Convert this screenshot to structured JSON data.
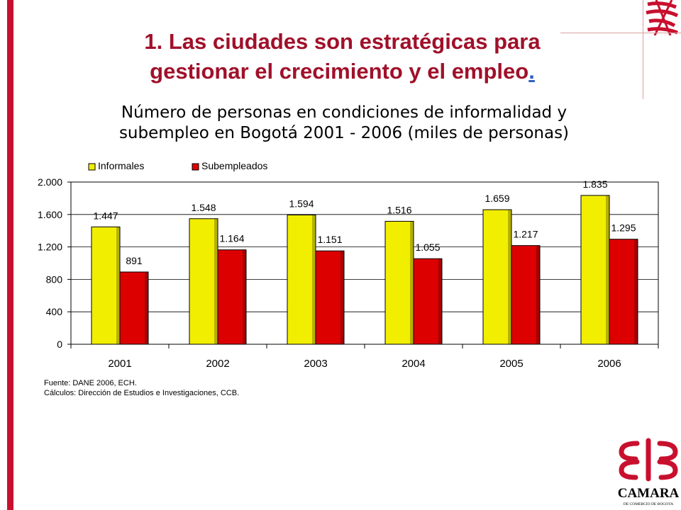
{
  "slide": {
    "title_line1": "1. Las ciudades son estratégicas para",
    "title_line2": "gestionar el crecimiento y el empleo",
    "title_dot": "."
  },
  "chart_data": {
    "type": "bar",
    "title": [
      "Número de personas en condiciones de informalidad y",
      "subempleo en Bogotá 2001 - 2006 (miles de personas)"
    ],
    "categories": [
      "2001",
      "2002",
      "2003",
      "2004",
      "2005",
      "2006"
    ],
    "series": [
      {
        "name": "Informales",
        "values": [
          1447,
          1548,
          1594,
          1516,
          1659,
          1835
        ],
        "labels": [
          "1.447",
          "1.548",
          "1.594",
          "1.516",
          "1.659",
          "1.835"
        ],
        "color": "#f2ee00"
      },
      {
        "name": "Subempleados",
        "values": [
          891,
          1164,
          1151,
          1055,
          1217,
          1295
        ],
        "labels": [
          "891",
          "1.164",
          "1.151",
          "1.055",
          "1.217",
          "1.295"
        ],
        "color": "#dd0000"
      }
    ],
    "ylim": [
      0,
      2000
    ],
    "yticks": [
      0,
      400,
      800,
      1200,
      1600,
      2000
    ],
    "ytick_labels": [
      "0",
      "400",
      "800",
      "1.200",
      "1.600",
      "2.000"
    ],
    "grid": true,
    "legend_position": "top-left"
  },
  "footnote": {
    "source": "Fuente: DANE 2006, ECH.",
    "calc": "Cálculos: Dirección de Estudios e Investigaciones, CCB."
  },
  "logo": {
    "name": "CAMARA",
    "subtitle": "DE COMERCIO DE BOGOTA",
    "color": "#c8102e"
  }
}
